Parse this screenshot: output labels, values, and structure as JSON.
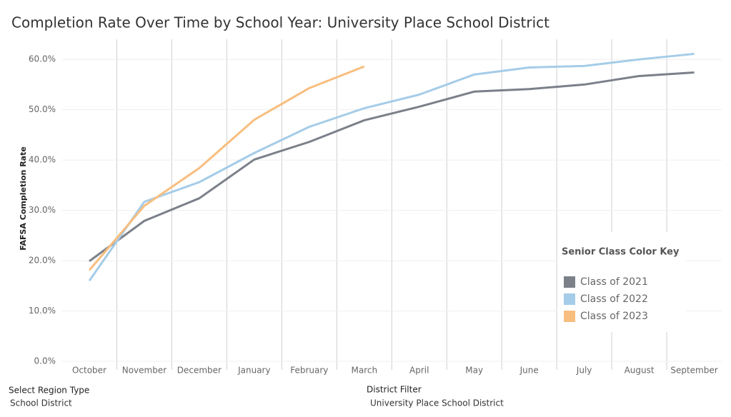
{
  "chart_data": {
    "type": "line",
    "title": "Completion Rate Over Time by School Year: University Place School District",
    "y_label": "FAFSA Completion Rate",
    "categories": [
      "October",
      "November",
      "December",
      "January",
      "February",
      "March",
      "April",
      "May",
      "June",
      "July",
      "August",
      "September"
    ],
    "series": [
      {
        "name": "Class of 2021",
        "color": "#7b8089",
        "values": [
          19.9,
          27.9,
          32.4,
          40.1,
          43.6,
          47.9,
          50.6,
          53.6,
          54.1,
          55.0,
          56.7,
          57.4
        ]
      },
      {
        "name": "Class of 2022",
        "color": "#a5cce8",
        "values": [
          16.0,
          31.7,
          35.6,
          41.4,
          46.6,
          50.3,
          53.0,
          57.0,
          58.4,
          58.7,
          60.0,
          61.1
        ]
      },
      {
        "name": "Class of 2023",
        "color": "#f8be7f",
        "values": [
          18.1,
          30.9,
          38.4,
          48.0,
          54.3,
          58.6,
          null,
          null,
          null,
          null,
          null,
          null
        ]
      }
    ],
    "ylim": [
      0,
      64
    ],
    "yticks": [
      {
        "value": 0,
        "label": "0.0%"
      },
      {
        "value": 10,
        "label": "10.0%"
      },
      {
        "value": 20,
        "label": "20.0%"
      },
      {
        "value": 30,
        "label": "30.0%"
      },
      {
        "value": 40,
        "label": "40.0%"
      },
      {
        "value": 50,
        "label": "50.0%"
      },
      {
        "value": 60,
        "label": "60.0%"
      }
    ],
    "grid": true,
    "legend_title": "Senior Class Color Key",
    "legend": "right"
  },
  "filters": [
    {
      "label": "Select Region Type",
      "value": "School District"
    },
    {
      "label": "District Filter",
      "value": "University Place School District"
    }
  ]
}
